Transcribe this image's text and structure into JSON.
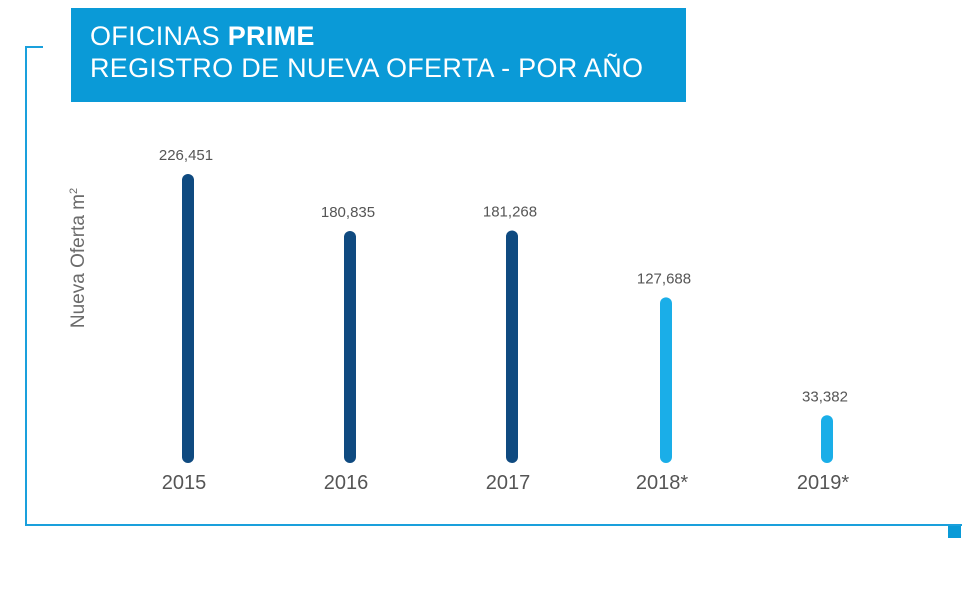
{
  "header": {
    "title_prefix": "OFICINAS ",
    "title_bold": "PRIME",
    "subtitle": "REGISTRO DE NUEVA OFERTA - POR AÑO"
  },
  "colors": {
    "title_bg": "#0a9ad7",
    "frame": "#1aa0dc",
    "bar_actual": "#0f4a80",
    "bar_estimate": "#1aaee8",
    "text": "#555555"
  },
  "chart_data": {
    "type": "bar",
    "title": "OFICINAS PRIME - REGISTRO DE NUEVA OFERTA - POR AÑO",
    "ylabel_main": "Nueva Oferta m",
    "ylabel_sup": "2",
    "xlabel": "",
    "categories": [
      "2015",
      "2016",
      "2017",
      "2018*",
      "2019*"
    ],
    "values": [
      226451,
      180835,
      181268,
      127688,
      33382
    ],
    "value_labels": [
      "226,451",
      "180,835",
      "181,268",
      "127,688",
      "33,382"
    ],
    "estimated": [
      false,
      false,
      false,
      true,
      true
    ],
    "ylim": [
      0,
      240000
    ],
    "grid": false
  }
}
